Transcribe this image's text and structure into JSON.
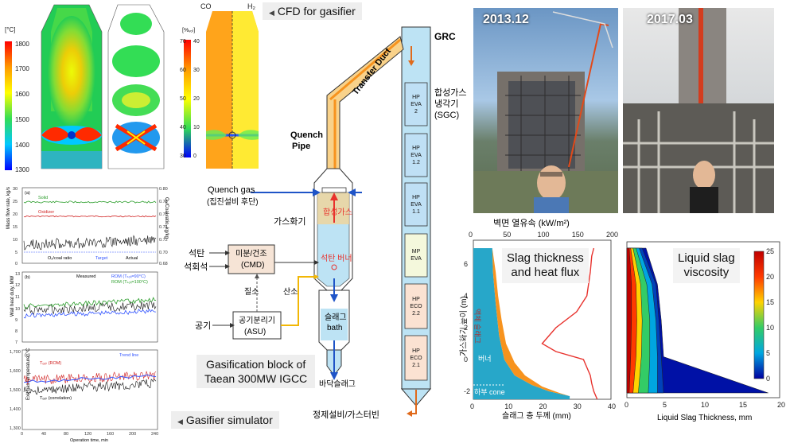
{
  "labels": {
    "cfd_for_gasifier": "CFD for gasifier",
    "gasifier_simulator": "Gasifier simulator",
    "gasification_block_line1": "Gasification block of",
    "gasification_block_line2": "Taean 300MW IGCC",
    "date_left": "2013.12",
    "date_right": "2017.03",
    "co_label": "CO",
    "h2_label": "H₂",
    "slag_title_line1": "Slag thickness",
    "slag_title_line2": "and heat flux",
    "viscosity_title_line1": "Liquid slag",
    "viscosity_title_line2": "viscosity"
  },
  "cfd": {
    "temp_unit": "[°C]",
    "temp_ticks": [
      "1800",
      "1700",
      "1600",
      "1500",
      "1400",
      "1300"
    ],
    "conc_unit": "[%ᵥₒₗ]",
    "conc_ticks_left": [
      "70",
      "60",
      "50",
      "40",
      "30"
    ],
    "conc_ticks_right": [
      "40",
      "30",
      "20",
      "10",
      "0"
    ]
  },
  "diagram": {
    "grc": "GRC",
    "transfer_duct": "Transfer Duct",
    "quench_pipe_l1": "Quench",
    "quench_pipe_l2": "Pipe",
    "quench_gas": "Quench gas",
    "quench_gas_sub": "(집진설비 후단)",
    "gasifier": "가스화기",
    "syngas": "합성가스",
    "coal_burner": "석탄 버너",
    "slag_bath_l1": "슬래그",
    "slag_bath_l2": "bath",
    "bottom_slag": "바닥슬래그",
    "coal": "석탄",
    "limestone": "석회석",
    "cmd_l1": "미분/건조",
    "cmd_l2": "(CMD)",
    "nitrogen": "질소",
    "oxygen": "산소",
    "air": "공기",
    "asu_l1": "공기분리기",
    "asu_l2": "(ASU)",
    "sgc_l1": "합성가스",
    "sgc_l2": "냉각기",
    "sgc_l3": "(SGC)",
    "to_cleanup": "정제설비/가스터빈",
    "hp_eva2": [
      "HP",
      "EVA",
      "2"
    ],
    "hp_eva12": [
      "HP",
      "EVA",
      "1.2"
    ],
    "hp_eva11": [
      "HP",
      "EVA",
      "1.1"
    ],
    "mp_eva": [
      "MP",
      "EVA"
    ],
    "hp_eco22": [
      "HP",
      "ECO",
      "2.2"
    ],
    "hp_eco21": [
      "HP",
      "ECO",
      "2.1"
    ]
  },
  "simulator_charts": {
    "a": {
      "tag": "(a)",
      "ylabel_left": "Mass flow rate, kg/s",
      "ylabel_right": "O₂/Coal ratio, kg/kg",
      "left_ticks": [
        "30",
        "25",
        "20",
        "15",
        "10",
        "5",
        "0"
      ],
      "right_ticks": [
        "0.80",
        "0.78",
        "0.76",
        "0.74",
        "0.72",
        "0.70",
        "0.68"
      ],
      "legend_solid": "Solid",
      "legend_oxidizer": "Oxidizer",
      "legend_o2coal": "O₂/coal ratio",
      "legend_target": "Target",
      "legend_actual": "Actual"
    },
    "b": {
      "tag": "(b)",
      "ylabel": "Wall heat duty, MW",
      "ticks": [
        "13",
        "12",
        "11",
        "10",
        "9",
        "8",
        "7"
      ],
      "legend_measured": "Measured",
      "legend_rom1": "ROM (Tₛₒₗᵢ=90°C)",
      "legend_rom2": "ROM (Tₛₒₗᵢ=100°C)"
    },
    "c": {
      "tag": "(c)",
      "ylabel": "Exit gas temperature, °C",
      "ticks": [
        "1,700",
        "1,600",
        "1,500",
        "1,400",
        "1,300"
      ],
      "legend_trend": "Trend line",
      "label_rom": "Tₒᵤₜ (ROM)",
      "label_corr": "Tₒᵤₜ (correlation)",
      "xticks": [
        "0",
        "40",
        "80",
        "120",
        "160",
        "200",
        "240"
      ],
      "xlabel": "Operation time, min"
    }
  },
  "chart_data": [
    {
      "type": "area",
      "title": "Slag thickness and heat flux",
      "xlabel": "슬래그 층 두께 (mm)",
      "ylabel": "가스화기 높이 (m)",
      "x2label": "벽면 열유속 (kW/m²)",
      "xticks": [
        "0",
        "10",
        "20",
        "30",
        "40"
      ],
      "x2ticks": [
        "0",
        "50",
        "100",
        "150",
        "200"
      ],
      "yticks": [
        "6",
        "4",
        "2",
        "0",
        "-2"
      ],
      "xlim": [
        0,
        40
      ],
      "x2lim": [
        0,
        200
      ],
      "ylim": [
        -2.5,
        7.5
      ],
      "region_labels": [
        "고체 슬래그",
        "액체 슬래그",
        "버너",
        "하부 cone"
      ],
      "series": [
        {
          "values_x": [
            0,
            5.5,
            5.7,
            6.5,
            7.5,
            9,
            12,
            17,
            22,
            28
          ],
          "values_y": [
            7.0,
            7.0,
            5.5,
            3.5,
            1.5,
            0.0,
            -1.0,
            -1.6,
            -2.0,
            -2.3
          ]
        },
        {
          "values_x": [
            5.5,
            6.5,
            7.2,
            8.2,
            9.5,
            12,
            15,
            20,
            25,
            28
          ],
          "values_y": [
            7.0,
            5.5,
            4.0,
            2.5,
            1.0,
            -0.2,
            -1.0,
            -1.7,
            -2.1,
            -2.3
          ]
        },
        {
          "values_x2": [
            175,
            172,
            170,
            165,
            150,
            120,
            100,
            120,
            160,
            165,
            170,
            172,
            175,
            180
          ],
          "values_y": [
            7.0,
            6.5,
            5.5,
            4.0,
            3.0,
            2.0,
            1.0,
            0.5,
            0.0,
            -0.5,
            -1.0,
            -1.5,
            -2.0,
            -2.5
          ]
        }
      ]
    },
    {
      "type": "heatmap",
      "title": "Liquid slag viscosity",
      "xlabel": "Liquid Slag Thickness, mm",
      "xticks": [
        "0",
        "5",
        "10",
        "15",
        "20"
      ],
      "xlim": [
        0,
        20
      ],
      "colorbar_ticks": [
        "25",
        "20",
        "15",
        "10",
        "5",
        "0"
      ],
      "colorbar_range": [
        0,
        25
      ],
      "profiles": [
        {
          "value": 25,
          "thickness": [
            0.3,
            0.6,
            0.6,
            0.5,
            0.3
          ]
        },
        {
          "value": 20,
          "thickness": [
            0.5,
            1.2,
            1.3,
            1.2,
            0.8
          ]
        },
        {
          "value": 15,
          "thickness": [
            0.8,
            1.8,
            2.0,
            1.9,
            1.5
          ]
        },
        {
          "value": 10,
          "thickness": [
            1.2,
            2.6,
            3.0,
            3.0,
            2.8
          ]
        },
        {
          "value": 5,
          "thickness": [
            1.6,
            3.3,
            3.8,
            4.0,
            4.0
          ]
        },
        {
          "value": 2,
          "thickness": [
            2.0,
            3.8,
            4.2,
            4.5,
            4.8
          ]
        },
        {
          "value": 0.5,
          "thickness": [
            2.5,
            4.0,
            4.5,
            4.8,
            18.5
          ]
        }
      ]
    }
  ],
  "colors": {
    "orange": "#f7931e",
    "light_blue": "#bde3f4",
    "cyan_slag": "#27a7c9",
    "red": "#e8322d",
    "blue_arrow": "#1f54c7",
    "grey_text_bg": "#eeeeee"
  }
}
